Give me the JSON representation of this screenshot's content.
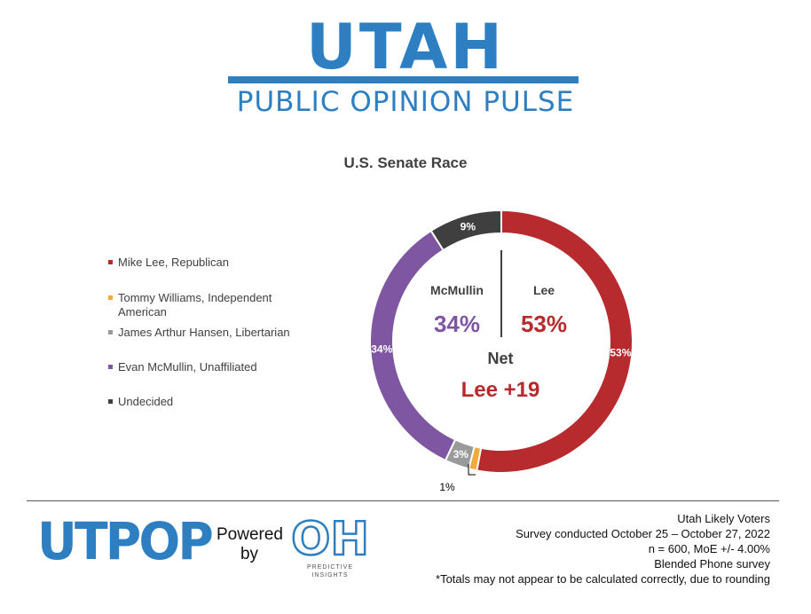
{
  "brand": {
    "title": "UTAH",
    "subtitle": "PUBLIC OPINION PULSE",
    "color": "#2e7fc1"
  },
  "chart_title": "U.S. Senate Race",
  "chart_data": {
    "type": "donut",
    "title": "U.S. Senate Race",
    "slices": [
      {
        "name": "Mike Lee, Republican",
        "value": 53,
        "label": "53%",
        "color": "#b72a2e"
      },
      {
        "name": "Tommy Williams, Independent American",
        "value": 1,
        "label": "1%",
        "color": "#f3a93b"
      },
      {
        "name": "James Arthur Hansen, Libertarian",
        "value": 3,
        "label": "3%",
        "color": "#9a9a9a"
      },
      {
        "name": "Evan McMullin, Unaffiliated",
        "value": 34,
        "label": "34%",
        "color": "#7e56a2"
      },
      {
        "name": "Undecided",
        "value": 9,
        "label": "9%",
        "color": "#3f3f3f"
      }
    ],
    "legend_position": "left",
    "center": {
      "left_name": "McMullin",
      "left_value": "34%",
      "right_name": "Lee",
      "right_value": "53%",
      "net_label": "Net",
      "net_value": "Lee +19"
    }
  },
  "footer": {
    "utpop_logo": "UTPOP",
    "powered_by": [
      "Powered",
      "by"
    ],
    "oh_logo": "OH",
    "oh_tagline": [
      "PREDICTIVE",
      "INSIGHTS"
    ],
    "notes": [
      "Utah Likely Voters",
      "Survey conducted October 25 – October 27, 2022",
      "n = 600, MoE +/- 4.00%",
      "Blended Phone survey",
      "*Totals may not appear to be calculated correctly, due to rounding"
    ]
  }
}
